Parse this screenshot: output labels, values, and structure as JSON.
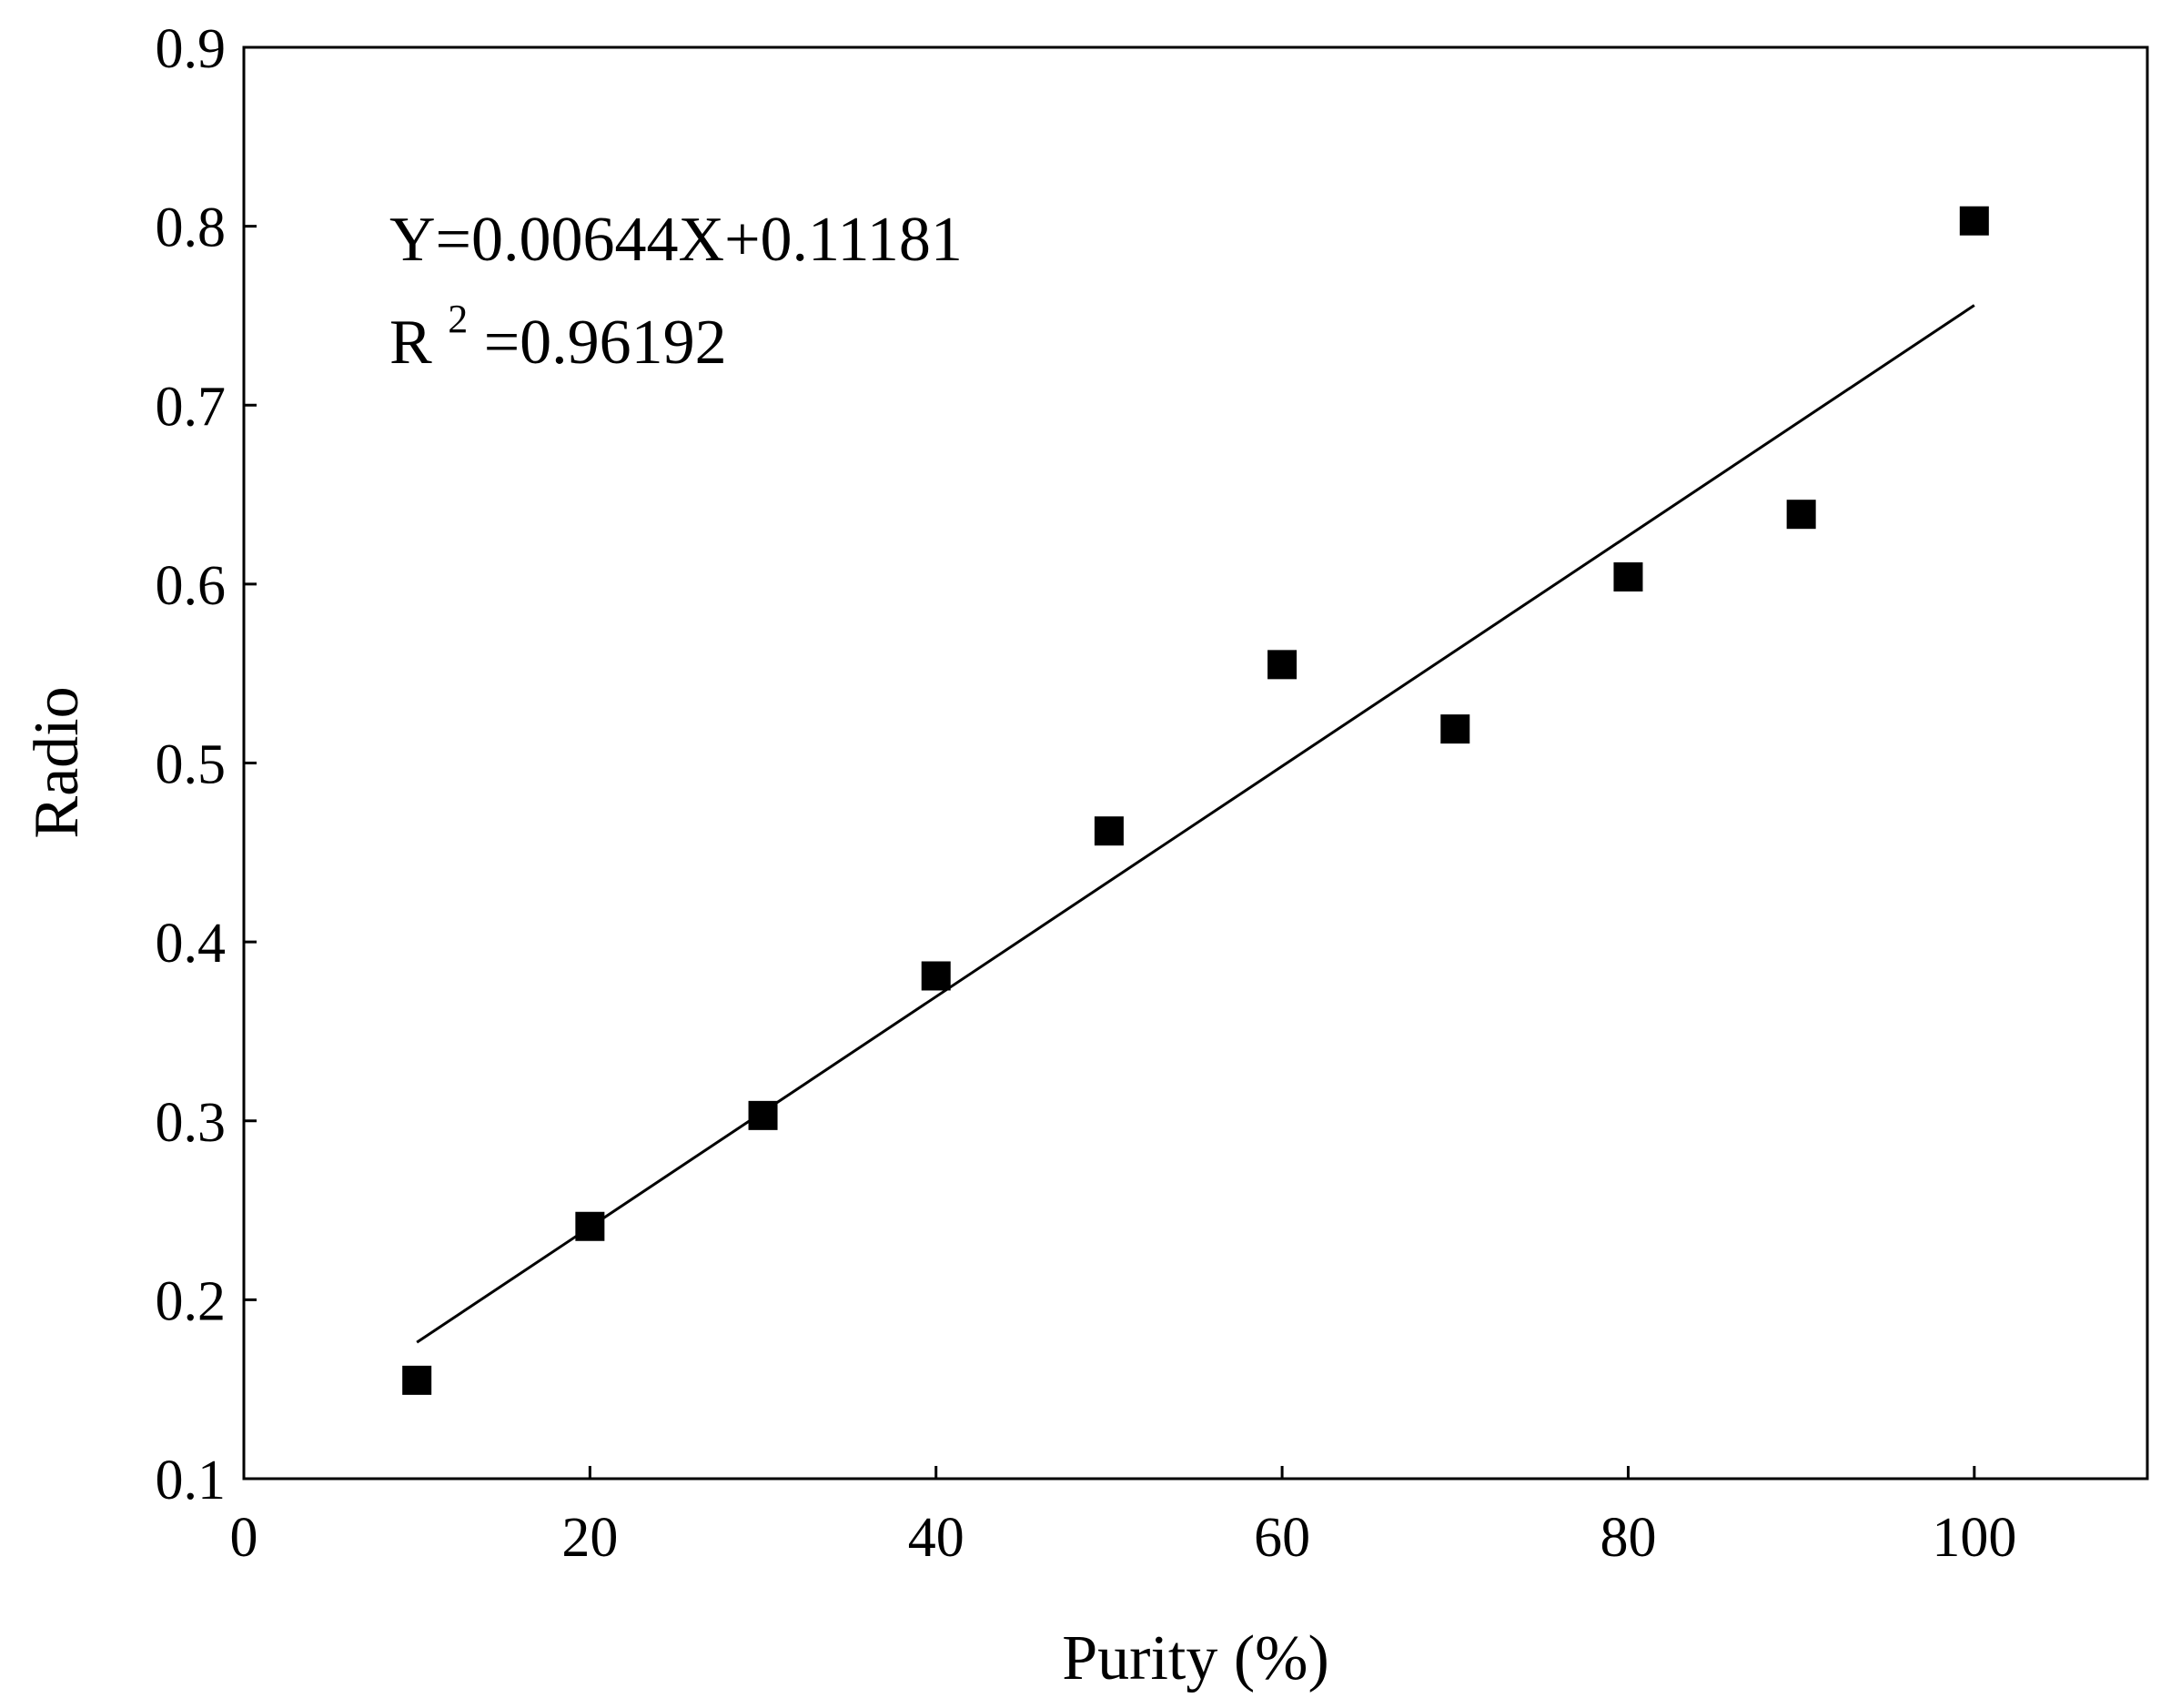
{
  "chart_data": {
    "type": "scatter",
    "title": "",
    "xlabel": "Purity (%)",
    "ylabel": "Radio",
    "xlim": [
      0,
      110
    ],
    "ylim": [
      0.1,
      0.9
    ],
    "x_ticks": [
      0,
      20,
      40,
      60,
      80,
      100
    ],
    "x_tick_labels": [
      "0",
      "20",
      "40",
      "60",
      "80",
      "100"
    ],
    "y_ticks": [
      0.1,
      0.2,
      0.3,
      0.4,
      0.5,
      0.6,
      0.7,
      0.8,
      0.9
    ],
    "y_tick_labels": [
      "0.1",
      "0.2",
      "0.3",
      "0.4",
      "0.5",
      "0.6",
      "0.7",
      "0.8",
      "0.9"
    ],
    "grid": false,
    "legend": "none",
    "marker": "filled-square",
    "marker_color": "#000000",
    "series": [
      {
        "x": [
          10,
          20,
          30,
          40,
          50,
          60,
          70,
          80,
          90,
          100
        ],
        "y": [
          0.155,
          0.241,
          0.303,
          0.381,
          0.462,
          0.555,
          0.519,
          0.604,
          0.639,
          0.803
        ]
      }
    ],
    "fit": {
      "slope": 0.00644,
      "intercept": 0.11181,
      "x_range": [
        10,
        100
      ],
      "equation_text": "Y=0.00644X+0.11181",
      "r2_prefix": "R",
      "r2_superscript": "2",
      "r2_value_text": "=0.96192"
    }
  }
}
